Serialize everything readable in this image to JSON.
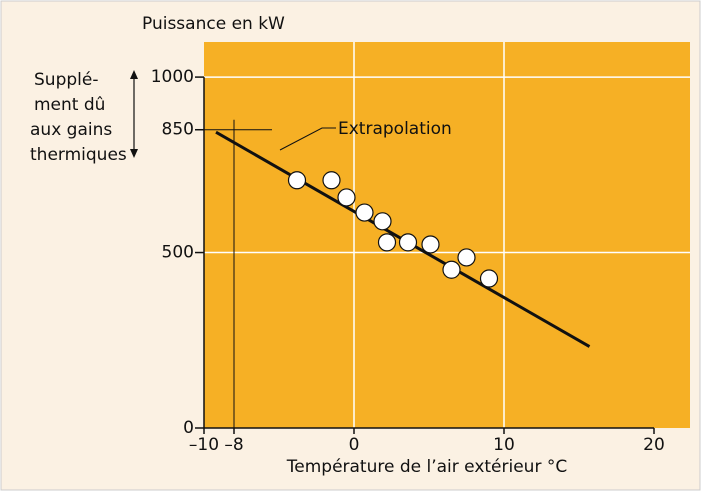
{
  "chart_data": {
    "type": "scatter",
    "y_label": "Puissance en kW",
    "x_label": "Température de l’air extérieur °C",
    "annotation": "Extrapolation",
    "side_note": [
      "Supplé-",
      "ment dû",
      "aux gains",
      "thermiques"
    ],
    "x": [
      -3.8,
      -1.5,
      -0.5,
      0.7,
      1.9,
      2.2,
      3.6,
      5.1,
      6.5,
      7.5,
      9.0
    ],
    "values": [
      706,
      706,
      657,
      614,
      589,
      529,
      529,
      523,
      451,
      486,
      426
    ],
    "fit_line": {
      "x": [
        -9.2,
        15.7
      ],
      "values": [
        843,
        232
      ]
    },
    "xlim": [
      -10,
      22.4
    ],
    "ylim": [
      0,
      1100
    ],
    "xticks": [
      {
        "value": -10,
        "label": "–10"
      },
      {
        "value": -8,
        "label": "–8"
      },
      0,
      10,
      20
    ],
    "yticks": [
      0,
      500,
      850,
      1000
    ],
    "grid_x": [
      0,
      10
    ],
    "grid_y": [
      500,
      1000
    ],
    "color": "#f6b025",
    "grid": true
  }
}
